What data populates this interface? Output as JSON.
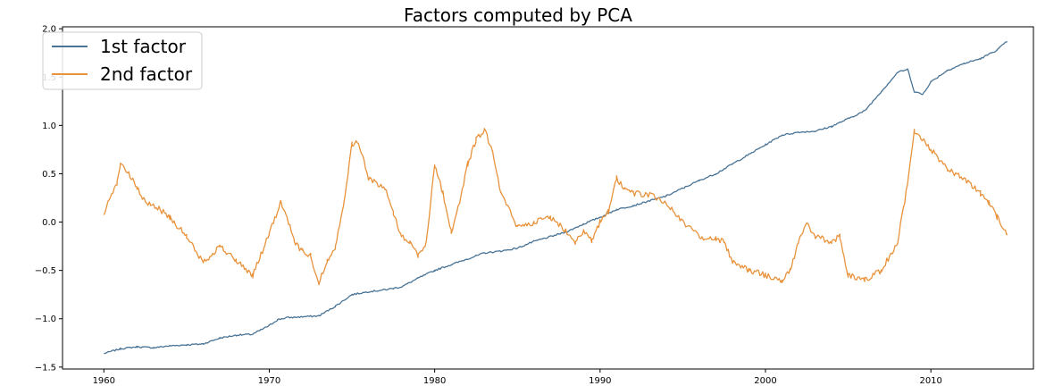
{
  "chart_data": {
    "type": "line",
    "title": "Factors computed by PCA",
    "xlabel": "",
    "ylabel": "",
    "xlim": [
      1957.5,
      2016.2
    ],
    "ylim": [
      -1.52,
      2.02
    ],
    "x_ticks": [
      1960,
      1970,
      1980,
      1990,
      2000,
      2010
    ],
    "x_tick_labels": [
      "1960",
      "1970",
      "1980",
      "1990",
      "2000",
      "2010"
    ],
    "y_ticks": [
      -1.5,
      -1.0,
      -0.5,
      0.0,
      0.5,
      1.0,
      1.5,
      2.0
    ],
    "y_tick_labels": [
      "−1.5",
      "−1.0",
      "−0.5",
      "0.0",
      "0.5",
      "1.0",
      "1.5",
      "2.0"
    ],
    "grid": false,
    "legend_position": "top-left",
    "series": [
      {
        "name": "1st factor",
        "color": "#4a7496",
        "x": [
          1960.0,
          1961.0,
          1962.0,
          1963.0,
          1964.0,
          1965.0,
          1966.0,
          1967.0,
          1968.0,
          1969.0,
          1970.0,
          1970.5,
          1971.0,
          1972.0,
          1973.0,
          1974.0,
          1975.0,
          1976.0,
          1977.0,
          1978.0,
          1979.0,
          1980.0,
          1981.0,
          1982.0,
          1983.0,
          1984.0,
          1985.0,
          1986.0,
          1987.0,
          1988.0,
          1989.0,
          1990.0,
          1991.0,
          1992.0,
          1993.0,
          1994.0,
          1995.0,
          1996.0,
          1997.0,
          1998.0,
          1999.0,
          2000.0,
          2001.0,
          2002.0,
          2003.0,
          2004.0,
          2005.0,
          2006.0,
          2007.0,
          2008.0,
          2008.6,
          2009.0,
          2009.5,
          2010.0,
          2011.0,
          2012.0,
          2013.0,
          2014.0,
          2014.6
        ],
        "y": [
          -1.36,
          -1.31,
          -1.29,
          -1.3,
          -1.28,
          -1.27,
          -1.26,
          -1.2,
          -1.17,
          -1.16,
          -1.07,
          -1.01,
          -0.99,
          -0.98,
          -0.97,
          -0.87,
          -0.75,
          -0.72,
          -0.7,
          -0.67,
          -0.58,
          -0.5,
          -0.44,
          -0.38,
          -0.32,
          -0.3,
          -0.27,
          -0.2,
          -0.15,
          -0.1,
          -0.02,
          0.05,
          0.13,
          0.17,
          0.22,
          0.27,
          0.35,
          0.43,
          0.5,
          0.6,
          0.7,
          0.8,
          0.9,
          0.93,
          0.94,
          0.99,
          1.07,
          1.15,
          1.35,
          1.55,
          1.58,
          1.35,
          1.32,
          1.45,
          1.57,
          1.64,
          1.69,
          1.78,
          1.87
        ]
      },
      {
        "name": "2nd factor",
        "color": "#e8923b",
        "x": [
          1960.0,
          1960.3,
          1960.8,
          1961.0,
          1961.5,
          1962.0,
          1962.5,
          1963.0,
          1964.0,
          1965.0,
          1966.0,
          1967.0,
          1968.0,
          1969.0,
          1970.0,
          1970.7,
          1971.0,
          1971.5,
          1972.0,
          1972.5,
          1973.0,
          1973.5,
          1974.0,
          1974.5,
          1975.0,
          1975.4,
          1976.0,
          1977.0,
          1977.5,
          1978.0,
          1978.5,
          1979.0,
          1979.5,
          1980.0,
          1980.5,
          1981.0,
          1981.5,
          1982.0,
          1982.5,
          1983.0,
          1983.5,
          1984.0,
          1985.0,
          1986.0,
          1987.0,
          1988.0,
          1988.5,
          1989.0,
          1989.5,
          1990.0,
          1990.5,
          1991.0,
          1991.5,
          1992.0,
          1993.0,
          1994.0,
          1995.0,
          1996.0,
          1997.0,
          1997.5,
          1998.0,
          1999.0,
          2000.0,
          2001.0,
          2001.5,
          2002.0,
          2002.5,
          2003.0,
          2004.0,
          2004.5,
          2005.0,
          2006.0,
          2007.0,
          2008.0,
          2008.5,
          2009.0,
          2009.5,
          2010.0,
          2011.0,
          2012.0,
          2013.0,
          2013.5,
          2014.0,
          2014.6
        ],
        "y": [
          0.05,
          0.25,
          0.4,
          0.62,
          0.5,
          0.35,
          0.2,
          0.18,
          0.05,
          -0.15,
          -0.42,
          -0.25,
          -0.4,
          -0.55,
          -0.12,
          0.2,
          0.1,
          -0.2,
          -0.3,
          -0.35,
          -0.63,
          -0.4,
          -0.25,
          0.2,
          0.8,
          0.83,
          0.45,
          0.35,
          0.1,
          -0.15,
          -0.2,
          -0.35,
          -0.2,
          0.6,
          0.3,
          -0.1,
          0.2,
          0.6,
          0.85,
          0.95,
          0.75,
          0.3,
          -0.05,
          0.0,
          0.05,
          -0.1,
          -0.2,
          -0.1,
          -0.2,
          0.0,
          0.1,
          0.45,
          0.35,
          0.3,
          0.28,
          0.2,
          0.0,
          -0.15,
          -0.18,
          -0.2,
          -0.4,
          -0.5,
          -0.55,
          -0.6,
          -0.5,
          -0.2,
          0.0,
          -0.15,
          -0.2,
          -0.15,
          -0.55,
          -0.6,
          -0.5,
          -0.2,
          0.3,
          0.95,
          0.85,
          0.75,
          0.55,
          0.45,
          0.3,
          0.2,
          0.05,
          -0.12
        ]
      }
    ]
  }
}
